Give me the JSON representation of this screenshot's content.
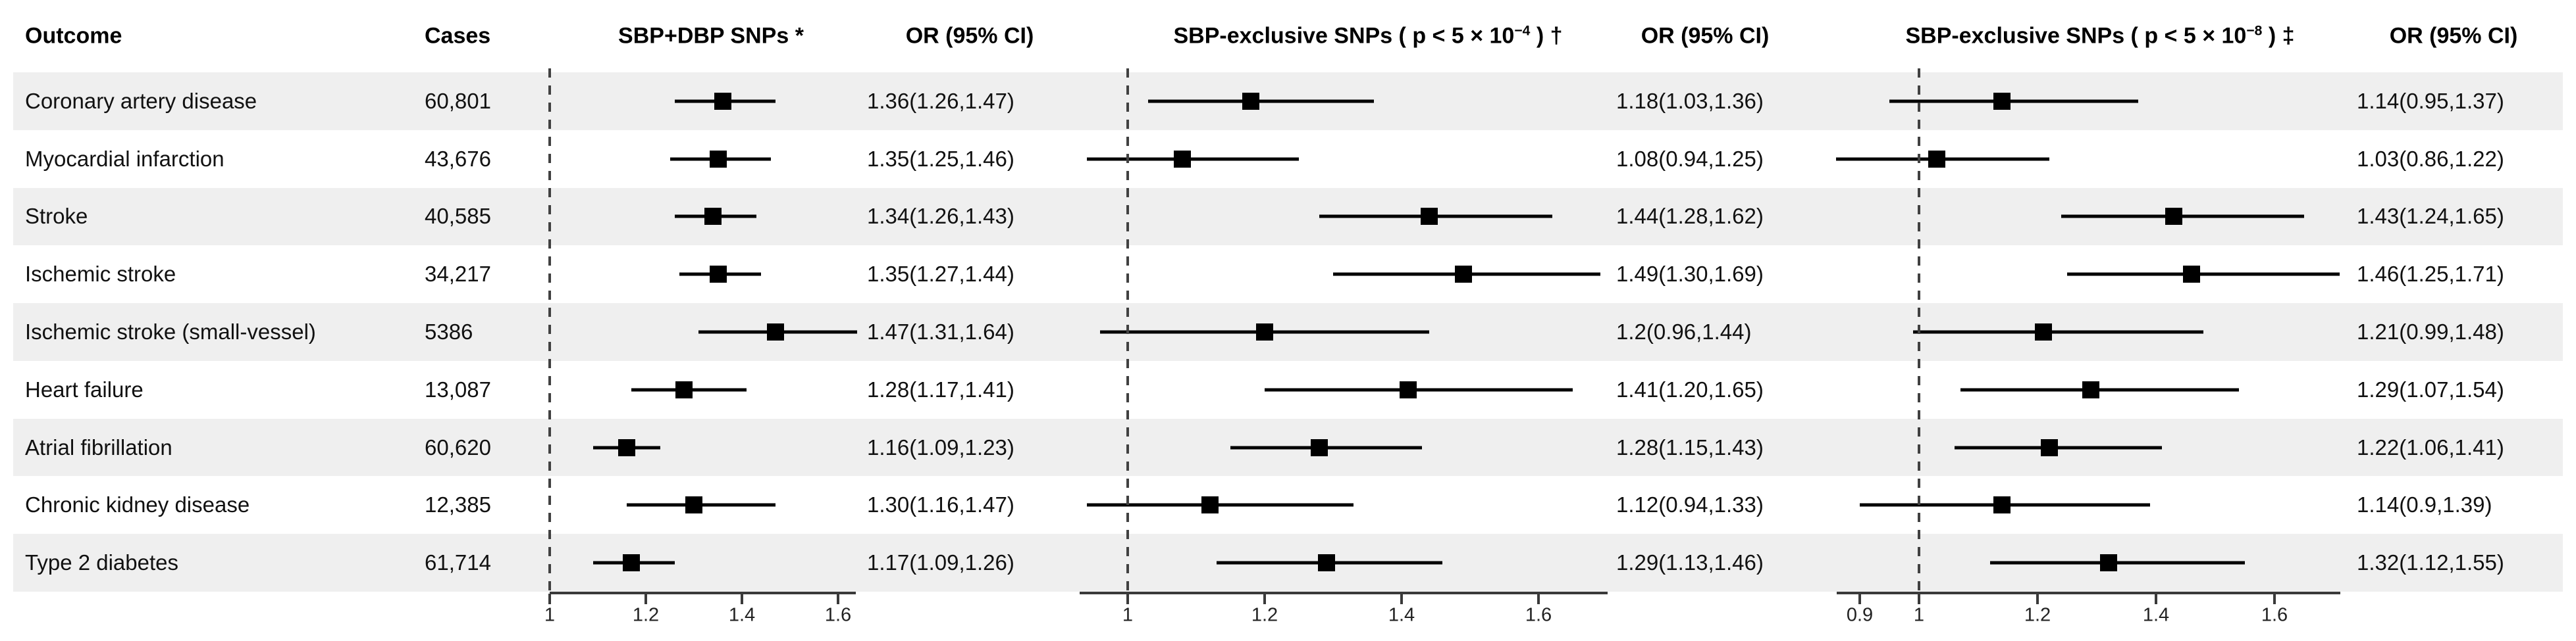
{
  "header": {
    "outcome": "Outcome",
    "cases": "Cases"
  },
  "chart_data": {
    "type": "forest",
    "title": "",
    "grid": false,
    "legend": false,
    "columns": {
      "outcome_header": "Outcome",
      "cases_header": "Cases",
      "or_header": "OR (95% CI)"
    },
    "panels": [
      {
        "title_pre": "SBP+DBP SNPs *",
        "title_sup": "",
        "title_post": "",
        "or_header": "OR (95% CI)",
        "xticks": [
          "1",
          "1.2",
          "1.4",
          "1.6"
        ],
        "xlim": [
          1.0,
          1.64
        ],
        "ref_line": 1.0
      },
      {
        "title_pre": "SBP-exclusive SNPs ( p < 5 × 10",
        "title_sup": "−4",
        "title_post": " ) †",
        "or_header": "OR (95% CI)",
        "xticks": [
          "1",
          "1.2",
          "1.4",
          "1.6"
        ],
        "xlim": [
          0.93,
          1.7
        ],
        "ref_line": 1.0
      },
      {
        "title_pre": "SBP-exclusive SNPs ( p < 5 × 10",
        "title_sup": "−8",
        "title_post": " ) ‡",
        "or_header": "OR (95% CI)",
        "xticks": [
          "0.9",
          "1",
          "1.2",
          "1.4",
          "1.6"
        ],
        "xlim": [
          0.86,
          1.71
        ],
        "ref_line": 1.0
      }
    ],
    "rows": [
      {
        "outcome": "Coronary artery disease",
        "cases": "60,801",
        "estimates": [
          {
            "or": 1.36,
            "lo": 1.26,
            "hi": 1.47,
            "label": "1.36(1.26,1.47)"
          },
          {
            "or": 1.18,
            "lo": 1.03,
            "hi": 1.36,
            "label": "1.18(1.03,1.36)"
          },
          {
            "or": 1.14,
            "lo": 0.95,
            "hi": 1.37,
            "label": "1.14(0.95,1.37)"
          }
        ]
      },
      {
        "outcome": "Myocardial infarction",
        "cases": "43,676",
        "estimates": [
          {
            "or": 1.35,
            "lo": 1.25,
            "hi": 1.46,
            "label": "1.35(1.25,1.46)"
          },
          {
            "or": 1.08,
            "lo": 0.94,
            "hi": 1.25,
            "label": "1.08(0.94,1.25)"
          },
          {
            "or": 1.03,
            "lo": 0.86,
            "hi": 1.22,
            "label": "1.03(0.86,1.22)"
          }
        ]
      },
      {
        "outcome": "Stroke",
        "cases": "40,585",
        "estimates": [
          {
            "or": 1.34,
            "lo": 1.26,
            "hi": 1.43,
            "label": "1.34(1.26,1.43)"
          },
          {
            "or": 1.44,
            "lo": 1.28,
            "hi": 1.62,
            "label": "1.44(1.28,1.62)"
          },
          {
            "or": 1.43,
            "lo": 1.24,
            "hi": 1.65,
            "label": "1.43(1.24,1.65)"
          }
        ]
      },
      {
        "outcome": "Ischemic stroke",
        "cases": "34,217",
        "estimates": [
          {
            "or": 1.35,
            "lo": 1.27,
            "hi": 1.44,
            "label": "1.35(1.27,1.44)"
          },
          {
            "or": 1.49,
            "lo": 1.3,
            "hi": 1.69,
            "label": "1.49(1.30,1.69)"
          },
          {
            "or": 1.46,
            "lo": 1.25,
            "hi": 1.71,
            "label": "1.46(1.25,1.71)"
          }
        ]
      },
      {
        "outcome": "Ischemic stroke (small-vessel)",
        "cases": "5386",
        "estimates": [
          {
            "or": 1.47,
            "lo": 1.31,
            "hi": 1.64,
            "label": "1.47(1.31,1.64)"
          },
          {
            "or": 1.2,
            "lo": 0.96,
            "hi": 1.44,
            "label": "1.2(0.96,1.44)"
          },
          {
            "or": 1.21,
            "lo": 0.99,
            "hi": 1.48,
            "label": "1.21(0.99,1.48)"
          }
        ]
      },
      {
        "outcome": "Heart failure",
        "cases": "13,087",
        "estimates": [
          {
            "or": 1.28,
            "lo": 1.17,
            "hi": 1.41,
            "label": "1.28(1.17,1.41)"
          },
          {
            "or": 1.41,
            "lo": 1.2,
            "hi": 1.65,
            "label": "1.41(1.20,1.65)"
          },
          {
            "or": 1.29,
            "lo": 1.07,
            "hi": 1.54,
            "label": "1.29(1.07,1.54)"
          }
        ]
      },
      {
        "outcome": "Atrial fibrillation",
        "cases": "60,620",
        "estimates": [
          {
            "or": 1.16,
            "lo": 1.09,
            "hi": 1.23,
            "label": "1.16(1.09,1.23)"
          },
          {
            "or": 1.28,
            "lo": 1.15,
            "hi": 1.43,
            "label": "1.28(1.15,1.43)"
          },
          {
            "or": 1.22,
            "lo": 1.06,
            "hi": 1.41,
            "label": "1.22(1.06,1.41)"
          }
        ]
      },
      {
        "outcome": "Chronic kidney disease",
        "cases": "12,385",
        "estimates": [
          {
            "or": 1.3,
            "lo": 1.16,
            "hi": 1.47,
            "label": "1.30(1.16,1.47)"
          },
          {
            "or": 1.12,
            "lo": 0.94,
            "hi": 1.33,
            "label": "1.12(0.94,1.33)"
          },
          {
            "or": 1.14,
            "lo": 0.9,
            "hi": 1.39,
            "label": "1.14(0.9,1.39)"
          }
        ]
      },
      {
        "outcome": "Type 2 diabetes",
        "cases": "61,714",
        "estimates": [
          {
            "or": 1.17,
            "lo": 1.09,
            "hi": 1.26,
            "label": "1.17(1.09,1.26)"
          },
          {
            "or": 1.29,
            "lo": 1.13,
            "hi": 1.46,
            "label": "1.29(1.13,1.46)"
          },
          {
            "or": 1.32,
            "lo": 1.12,
            "hi": 1.55,
            "label": "1.32(1.12,1.55)"
          }
        ]
      }
    ]
  }
}
